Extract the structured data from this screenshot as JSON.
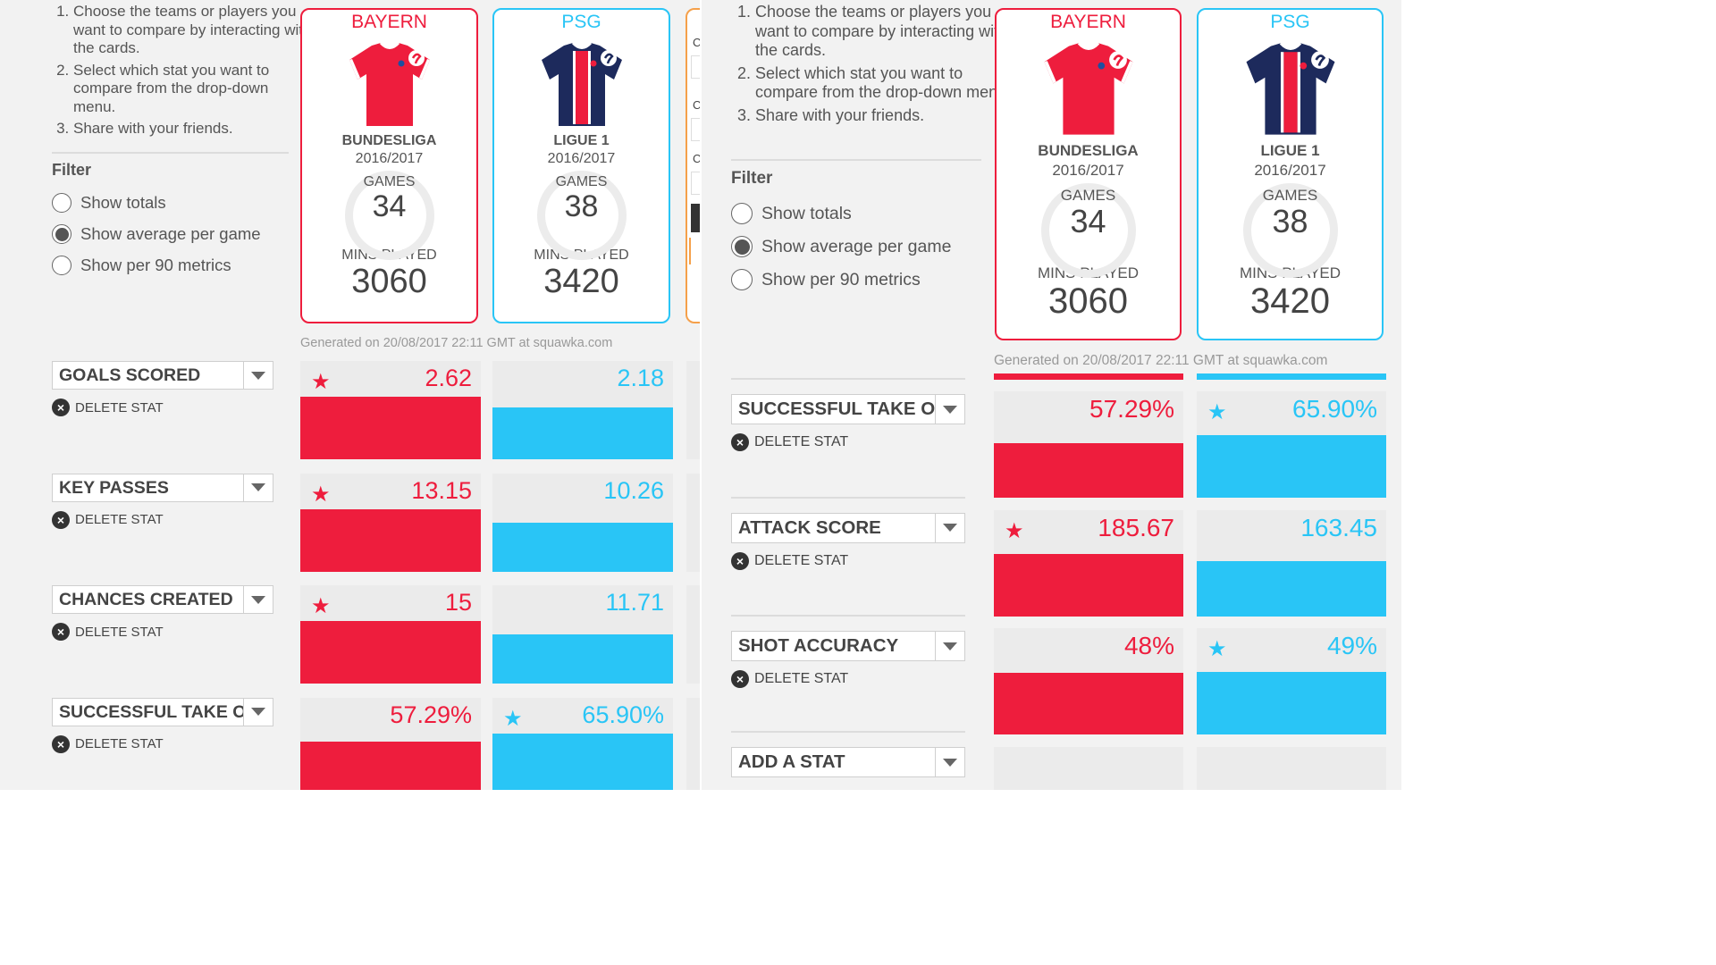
{
  "instructions": [
    "Choose the teams or players you want to compare by interacting with the cards.",
    "Select which stat you want to compare from the drop-down menu.",
    "Share with your friends."
  ],
  "filter": {
    "title": "Filter",
    "options": [
      "Show totals",
      "Show average per game",
      "Show per 90 metrics"
    ],
    "selected_index": 1
  },
  "teams": [
    {
      "name": "BAYERN",
      "league": "BUNDESLIGA",
      "season": "2016/2017",
      "games_label": "GAMES",
      "games": "34",
      "mins_label": "MINS PLAYED",
      "mins": "3060",
      "color": "#ee1d3d"
    },
    {
      "name": "PSG",
      "league": "LIGUE 1",
      "season": "2016/2017",
      "games_label": "GAMES",
      "games": "38",
      "mins_label": "MINS PLAYED",
      "mins": "3420",
      "color": "#29c5f6"
    }
  ],
  "generated_text": "Generated on 20/08/2017 22:11 GMT at squawka.com",
  "delete_label": "DELETE STAT",
  "partial_card_label": "C",
  "stats_left": [
    {
      "name": "GOALS SCORED",
      "bayern": "2.62",
      "psg": "2.18",
      "bayern_num": 2.62,
      "psg_num": 2.18,
      "winner": "bayern"
    },
    {
      "name": "KEY PASSES",
      "bayern": "13.15",
      "psg": "10.26",
      "bayern_num": 13.15,
      "psg_num": 10.26,
      "winner": "bayern"
    },
    {
      "name": "CHANCES CREATED",
      "bayern": "15",
      "psg": "11.71",
      "bayern_num": 15,
      "psg_num": 11.71,
      "winner": "bayern"
    },
    {
      "name": "SUCCESSFUL TAKE O",
      "bayern": "57.29%",
      "psg": "65.90%",
      "bayern_num": 57.29,
      "psg_num": 65.9,
      "winner": "psg"
    }
  ],
  "stats_right": [
    {
      "name": "SUCCESSFUL TAKE O",
      "bayern": "57.29%",
      "psg": "65.90%",
      "bayern_num": 57.29,
      "psg_num": 65.9,
      "winner": "psg"
    },
    {
      "name": "ATTACK SCORE",
      "bayern": "185.67",
      "psg": "163.45",
      "bayern_num": 185.67,
      "psg_num": 163.45,
      "winner": "bayern"
    },
    {
      "name": "SHOT ACCURACY",
      "bayern": "48%",
      "psg": "49%",
      "bayern_num": 48,
      "psg_num": 49,
      "winner": "psg"
    }
  ],
  "add_stat_label": "ADD A STAT",
  "icons": {
    "winner": "star-icon",
    "delete": "close-circle-icon",
    "dropdown": "chevron-down-icon"
  },
  "colors": {
    "bayern": "#ee1d3d",
    "psg": "#29c5f6"
  }
}
